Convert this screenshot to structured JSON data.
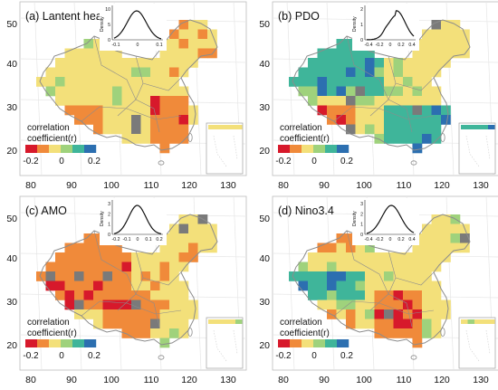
{
  "panels": [
    {
      "title": "(a) Lantent heat",
      "inset": {
        "x_ticks": [
          "-0.1",
          "0",
          "0.1"
        ],
        "y_ticks": [
          "0",
          "5",
          "10"
        ],
        "ylabel": "Density"
      },
      "legend": {
        "title_line1": "correlation",
        "title_line2": "coefficient(r)",
        "ticks": [
          "-0.2",
          "0",
          "0.2"
        ]
      },
      "y_ticks": [
        "50",
        "40",
        "30",
        "20"
      ],
      "x_ticks": [
        "80",
        "90",
        "100",
        "110",
        "120",
        "130"
      ],
      "field": "lh"
    },
    {
      "title": "(b) PDO",
      "inset": {
        "x_ticks": [
          "-0.4",
          "-0.2",
          "0",
          "0.2",
          "0.4"
        ],
        "y_ticks": [
          "0",
          "1",
          "2"
        ],
        "ylabel": "Density"
      },
      "legend": {
        "title_line1": "correlation",
        "title_line2": "coefficient(r)",
        "ticks": [
          "-0.2",
          "0",
          "0.2"
        ]
      },
      "y_ticks": [
        "50",
        "40",
        "30",
        "20"
      ],
      "x_ticks": [
        "80",
        "90",
        "100",
        "110",
        "120",
        "130"
      ],
      "field": "pdo"
    },
    {
      "title": "(c) AMO",
      "inset": {
        "x_ticks": [
          "-0.2",
          "-0.1",
          "0",
          "0.1",
          "0.2"
        ],
        "y_ticks": [
          "0",
          "1",
          "2",
          "3"
        ],
        "ylabel": "Density"
      },
      "legend": {
        "title_line1": "correlation",
        "title_line2": "coefficient(r)",
        "ticks": [
          "-0.2",
          "0",
          "0.2"
        ]
      },
      "y_ticks": [
        "50",
        "40",
        "30",
        "20"
      ],
      "x_ticks": [
        "80",
        "90",
        "100",
        "110",
        "120",
        "130"
      ],
      "field": "amo"
    },
    {
      "title": "(d) Nino3.4",
      "inset": {
        "x_ticks": [
          "-0.4",
          "-0.2",
          "0",
          "0.2",
          "0.4"
        ],
        "y_ticks": [
          "0",
          "1",
          "2",
          "3"
        ],
        "ylabel": "Density"
      },
      "legend": {
        "title_line1": "correlation",
        "title_line2": "coefficient(r)",
        "ticks": [
          "-0.2",
          "0",
          "0.2"
        ]
      },
      "y_ticks": [
        "50",
        "40",
        "30",
        "20"
      ],
      "x_ticks": [
        "80",
        "90",
        "100",
        "110",
        "120",
        "130"
      ],
      "field": "nino"
    }
  ],
  "colors": {
    "strong_negative": "#d7192b",
    "negative": "#f08a3a",
    "neutral": "#f3e07a",
    "weak_positive": "#9fd27c",
    "positive": "#3fb59a",
    "strong_positive": "#2c6fb0",
    "missing": "#7a7a7a",
    "border": "#8c8c8c"
  }
}
